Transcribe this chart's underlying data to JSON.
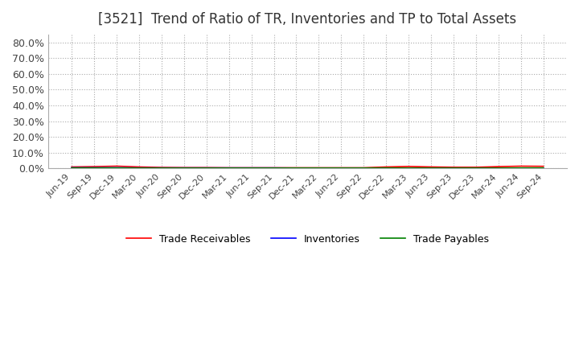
{
  "title": "[3521]  Trend of Ratio of TR, Inventories and TP to Total Assets",
  "title_fontsize": 12,
  "title_color": "#333333",
  "ylim": [
    0.0,
    0.85
  ],
  "yticks": [
    0.0,
    0.1,
    0.2,
    0.3,
    0.4,
    0.5,
    0.6,
    0.7,
    0.8
  ],
  "ytick_labels": [
    "0.0%",
    "10.0%",
    "20.0%",
    "30.0%",
    "40.0%",
    "50.0%",
    "60.0%",
    "70.0%",
    "80.0%"
  ],
  "x_labels": [
    "Jun-19",
    "Sep-19",
    "Dec-19",
    "Mar-20",
    "Jun-20",
    "Sep-20",
    "Dec-20",
    "Mar-21",
    "Jun-21",
    "Sep-21",
    "Dec-21",
    "Mar-22",
    "Jun-22",
    "Sep-22",
    "Dec-22",
    "Mar-23",
    "Jun-23",
    "Sep-23",
    "Dec-23",
    "Mar-24",
    "Jun-24",
    "Sep-24"
  ],
  "trade_receivables": [
    0.01,
    0.012,
    0.015,
    0.01,
    0.007,
    0.006,
    0.006,
    0.005,
    0.005,
    0.005,
    0.005,
    0.005,
    0.005,
    0.005,
    0.01,
    0.013,
    0.01,
    0.008,
    0.008,
    0.012,
    0.015,
    0.014
  ],
  "inventories": [
    0.005,
    0.005,
    0.005,
    0.004,
    0.004,
    0.004,
    0.004,
    0.004,
    0.004,
    0.004,
    0.003,
    0.003,
    0.003,
    0.003,
    0.003,
    0.003,
    0.003,
    0.003,
    0.003,
    0.003,
    0.003,
    0.003
  ],
  "trade_payables": [
    0.004,
    0.004,
    0.004,
    0.003,
    0.003,
    0.003,
    0.003,
    0.003,
    0.003,
    0.003,
    0.003,
    0.003,
    0.003,
    0.003,
    0.004,
    0.003,
    0.003,
    0.003,
    0.003,
    0.003,
    0.004,
    0.004
  ],
  "tr_color": "#ff0000",
  "inv_color": "#0000ff",
  "tp_color": "#008000",
  "line_width": 1.2,
  "background_color": "#ffffff",
  "plot_bg_color": "#ffffff",
  "grid_color": "#aaaaaa",
  "legend_labels": [
    "Trade Receivables",
    "Inventories",
    "Trade Payables"
  ]
}
